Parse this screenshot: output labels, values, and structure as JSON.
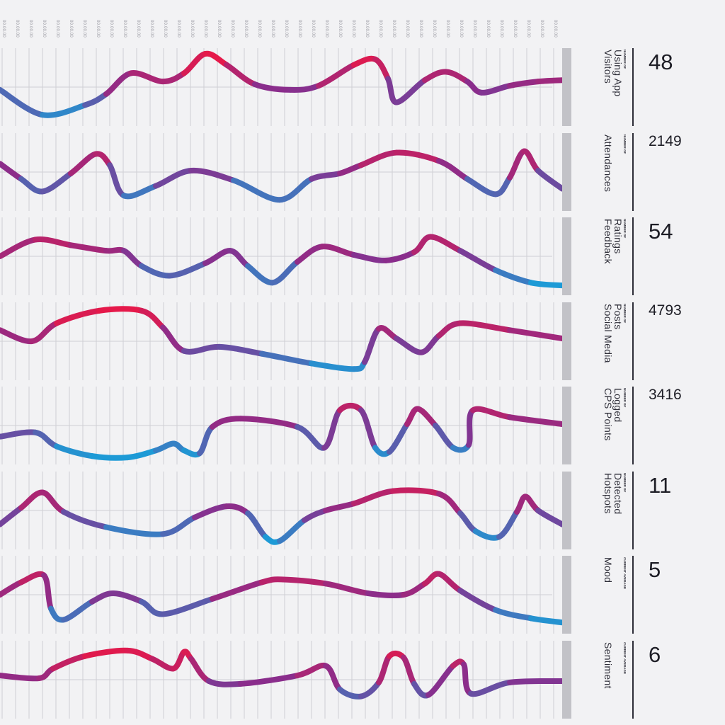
{
  "tick_label": "00.00.00",
  "colors": {
    "high": "#e5194a",
    "mid": "#8a2d8c",
    "low": "#1d9ad6",
    "grid": "#cfcfd4",
    "side_bar": "#c2c2c7",
    "text": "#2e2e38",
    "background": "#f2f2f4"
  },
  "chart_data": [
    {
      "type": "line",
      "kicker": "NUMBER OF",
      "name_lines": [
        "Visitors",
        "Using App"
      ],
      "value": "48",
      "value_size": "big",
      "ylim": [
        0,
        100
      ],
      "points": [
        [
          0,
          46
        ],
        [
          60,
          10
        ],
        [
          120,
          24
        ],
        [
          150,
          40
        ],
        [
          185,
          70
        ],
        [
          230,
          58
        ],
        [
          260,
          70
        ],
        [
          290,
          98
        ],
        [
          320,
          82
        ],
        [
          360,
          54
        ],
        [
          410,
          46
        ],
        [
          450,
          52
        ],
        [
          500,
          82
        ],
        [
          530,
          90
        ],
        [
          548,
          62
        ],
        [
          560,
          28
        ],
        [
          600,
          60
        ],
        [
          630,
          72
        ],
        [
          660,
          58
        ],
        [
          680,
          42
        ],
        [
          720,
          52
        ],
        [
          760,
          58
        ],
        [
          794,
          60
        ]
      ]
    },
    {
      "type": "line",
      "kicker": "NUMBER OF",
      "name_lines": [
        "Attendances"
      ],
      "value": "2149",
      "value_size": "small",
      "ylim": [
        0,
        100
      ],
      "points": [
        [
          0,
          62
        ],
        [
          30,
          40
        ],
        [
          60,
          22
        ],
        [
          100,
          48
        ],
        [
          135,
          76
        ],
        [
          155,
          60
        ],
        [
          175,
          16
        ],
        [
          220,
          30
        ],
        [
          270,
          52
        ],
        [
          330,
          38
        ],
        [
          395,
          10
        ],
        [
          440,
          40
        ],
        [
          480,
          48
        ],
        [
          510,
          60
        ],
        [
          560,
          78
        ],
        [
          620,
          66
        ],
        [
          660,
          40
        ],
        [
          700,
          18
        ],
        [
          720,
          42
        ],
        [
          740,
          80
        ],
        [
          760,
          52
        ],
        [
          794,
          26
        ]
      ]
    },
    {
      "type": "line",
      "kicker": "NUMBER OF",
      "name_lines": [
        "Feedback",
        "Ratings"
      ],
      "value": "54",
      "value_size": "big",
      "ylim": [
        0,
        100
      ],
      "points": [
        [
          0,
          50
        ],
        [
          50,
          74
        ],
        [
          100,
          66
        ],
        [
          150,
          58
        ],
        [
          175,
          58
        ],
        [
          200,
          36
        ],
        [
          240,
          22
        ],
        [
          290,
          40
        ],
        [
          325,
          58
        ],
        [
          350,
          36
        ],
        [
          385,
          12
        ],
        [
          420,
          42
        ],
        [
          455,
          64
        ],
        [
          500,
          52
        ],
        [
          545,
          44
        ],
        [
          585,
          56
        ],
        [
          608,
          78
        ],
        [
          650,
          58
        ],
        [
          700,
          30
        ],
        [
          750,
          12
        ],
        [
          794,
          8
        ]
      ]
    },
    {
      "type": "line",
      "kicker": "NUMBER OF",
      "name_lines": [
        "Social Media",
        "Posts"
      ],
      "value": "4793",
      "value_size": "small",
      "ylim": [
        0,
        100
      ],
      "points": [
        [
          0,
          66
        ],
        [
          45,
          50
        ],
        [
          80,
          76
        ],
        [
          140,
          94
        ],
        [
          200,
          94
        ],
        [
          230,
          70
        ],
        [
          260,
          36
        ],
        [
          310,
          42
        ],
        [
          370,
          32
        ],
        [
          440,
          18
        ],
        [
          500,
          10
        ],
        [
          515,
          20
        ],
        [
          535,
          68
        ],
        [
          560,
          54
        ],
        [
          595,
          34
        ],
        [
          620,
          58
        ],
        [
          650,
          76
        ],
        [
          720,
          66
        ],
        [
          794,
          54
        ]
      ]
    },
    {
      "type": "line",
      "kicker": "NUMBER OF",
      "name_lines": [
        "CPS Points",
        "Logged"
      ],
      "value": "3416",
      "value_size": "small",
      "ylim": [
        0,
        100
      ],
      "points": [
        [
          0,
          34
        ],
        [
          50,
          40
        ],
        [
          80,
          20
        ],
        [
          130,
          6
        ],
        [
          180,
          4
        ],
        [
          220,
          14
        ],
        [
          245,
          24
        ],
        [
          260,
          14
        ],
        [
          282,
          10
        ],
        [
          300,
          48
        ],
        [
          340,
          60
        ],
        [
          420,
          48
        ],
        [
          458,
          18
        ],
        [
          480,
          72
        ],
        [
          510,
          72
        ],
        [
          530,
          18
        ],
        [
          550,
          12
        ],
        [
          575,
          52
        ],
        [
          590,
          74
        ],
        [
          615,
          50
        ],
        [
          640,
          18
        ],
        [
          662,
          22
        ],
        [
          668,
          72
        ],
        [
          720,
          62
        ],
        [
          794,
          52
        ]
      ]
    },
    {
      "type": "line",
      "kicker": "NUMBER OF",
      "name_lines": [
        "Hotspots",
        "Detected"
      ],
      "value": "11",
      "value_size": "big",
      "ylim": [
        0,
        100
      ],
      "points": [
        [
          0,
          30
        ],
        [
          30,
          54
        ],
        [
          60,
          76
        ],
        [
          90,
          48
        ],
        [
          150,
          26
        ],
        [
          230,
          16
        ],
        [
          275,
          40
        ],
        [
          320,
          56
        ],
        [
          350,
          46
        ],
        [
          375,
          12
        ],
        [
          395,
          6
        ],
        [
          430,
          36
        ],
        [
          460,
          50
        ],
        [
          500,
          60
        ],
        [
          555,
          78
        ],
        [
          620,
          74
        ],
        [
          650,
          46
        ],
        [
          672,
          20
        ],
        [
          705,
          12
        ],
        [
          730,
          48
        ],
        [
          742,
          70
        ],
        [
          760,
          50
        ],
        [
          794,
          30
        ]
      ]
    },
    {
      "type": "line",
      "kicker": "CURRENT AVERAGE",
      "name_lines": [
        "Mood"
      ],
      "value": "5",
      "value_size": "big",
      "ylim": [
        0,
        100
      ],
      "points": [
        [
          0,
          50
        ],
        [
          30,
          68
        ],
        [
          62,
          78
        ],
        [
          72,
          30
        ],
        [
          90,
          14
        ],
        [
          130,
          40
        ],
        [
          160,
          52
        ],
        [
          200,
          40
        ],
        [
          230,
          22
        ],
        [
          300,
          44
        ],
        [
          370,
          68
        ],
        [
          400,
          72
        ],
        [
          460,
          66
        ],
        [
          520,
          52
        ],
        [
          570,
          50
        ],
        [
          600,
          66
        ],
        [
          620,
          80
        ],
        [
          650,
          56
        ],
        [
          700,
          28
        ],
        [
          750,
          16
        ],
        [
          794,
          10
        ]
      ]
    },
    {
      "type": "line",
      "kicker": "CURRENT AVERAGE",
      "name_lines": [
        "Sentiment"
      ],
      "value": "6",
      "value_size": "big",
      "ylim": [
        0,
        100
      ],
      "points": [
        [
          0,
          56
        ],
        [
          55,
          52
        ],
        [
          75,
          66
        ],
        [
          120,
          84
        ],
        [
          180,
          92
        ],
        [
          215,
          80
        ],
        [
          245,
          66
        ],
        [
          260,
          90
        ],
        [
          270,
          80
        ],
        [
          295,
          48
        ],
        [
          340,
          44
        ],
        [
          420,
          56
        ],
        [
          460,
          70
        ],
        [
          480,
          36
        ],
        [
          510,
          26
        ],
        [
          535,
          46
        ],
        [
          550,
          84
        ],
        [
          570,
          82
        ],
        [
          585,
          44
        ],
        [
          605,
          28
        ],
        [
          640,
          70
        ],
        [
          655,
          72
        ],
        [
          665,
          30
        ],
        [
          720,
          46
        ],
        [
          794,
          48
        ]
      ]
    }
  ]
}
